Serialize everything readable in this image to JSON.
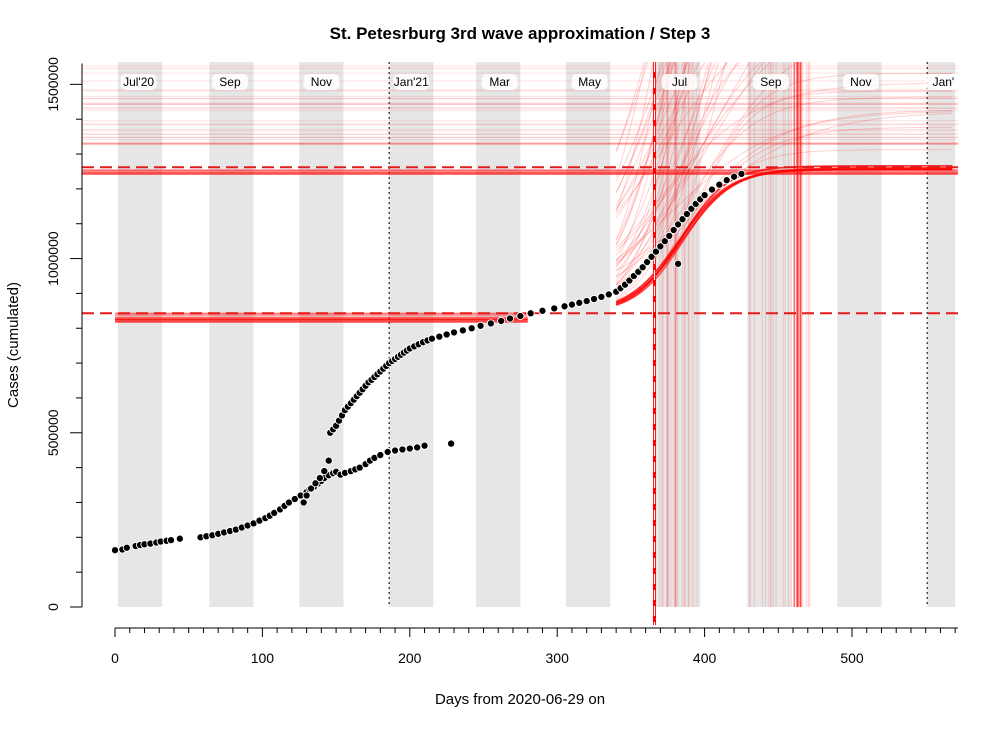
{
  "chart_data": {
    "type": "scatter",
    "title": "St. Petesrburg 3rd wave approximation / Step 3",
    "xlabel": "Days from 2020-06-29 on",
    "ylabel": "Cases (cumulated)",
    "xlim": [
      -5,
      570
    ],
    "ylim": [
      0,
      1560000
    ],
    "x_ticks": [
      0,
      100,
      200,
      300,
      400,
      500
    ],
    "y_ticks": [
      0,
      500000,
      1000000,
      1500000
    ],
    "x_tick_labels": [
      "0",
      "100",
      "200",
      "300",
      "400",
      "500"
    ],
    "y_tick_labels": [
      "0",
      "500000",
      "1000000",
      "1500000"
    ],
    "month_labels": [
      {
        "label": "Jul'20",
        "day": 16,
        "shade": [
          2,
          32
        ]
      },
      {
        "label": "Sep",
        "day": 78,
        "shade": [
          64,
          94
        ]
      },
      {
        "label": "Nov",
        "day": 140,
        "shade": [
          125,
          155
        ]
      },
      {
        "label": "Jan'21",
        "day": 201,
        "shade": [
          186,
          216
        ]
      },
      {
        "label": "Mar",
        "day": 261,
        "shade": [
          245,
          275
        ]
      },
      {
        "label": "May",
        "day": 322,
        "shade": [
          306,
          336
        ]
      },
      {
        "label": "Jul",
        "day": 383,
        "shade": [
          367,
          397
        ]
      },
      {
        "label": "Sep",
        "day": 445,
        "shade": [
          429,
          459
        ]
      },
      {
        "label": "Nov",
        "day": 506,
        "shade": [
          490,
          520
        ]
      },
      {
        "label": "Jan'",
        "day": 562,
        "shade": [
          551,
          570
        ]
      }
    ],
    "year_markers": [
      186,
      551
    ],
    "reference_lines": {
      "horizontal": [
        1262000,
        843000
      ],
      "vertical": [
        366
      ]
    },
    "colors": {
      "points": "#000000",
      "fit": "#ff0000",
      "shade": "#e6e6e6"
    },
    "series": [
      {
        "x": [
          0,
          5,
          8,
          14,
          17,
          20,
          24,
          28,
          31,
          35,
          38,
          44,
          58,
          62,
          66,
          70,
          74,
          78,
          82,
          86,
          90,
          94,
          98,
          102,
          105,
          108,
          112,
          115,
          118,
          122,
          126,
          130,
          132,
          135,
          138,
          140,
          142,
          145,
          148,
          150,
          153,
          156,
          160,
          163,
          166,
          170,
          173,
          176,
          180,
          185,
          190,
          195,
          200,
          205,
          210,
          228
        ],
        "y": [
          163000,
          165000,
          170000,
          175000,
          178000,
          180000,
          182000,
          185000,
          188000,
          190000,
          192000,
          196000,
          200000,
          203000,
          206000,
          210000,
          214000,
          218000,
          222000,
          228000,
          234000,
          240000,
          248000,
          255000,
          262000,
          270000,
          280000,
          290000,
          300000,
          310000,
          320000,
          330000,
          338000,
          345000,
          355000,
          362000,
          370000,
          378000,
          384000,
          388000,
          380000,
          385000,
          390000,
          395000,
          400000,
          410000,
          420000,
          428000,
          436000,
          445000,
          449000,
          452000,
          455000,
          458000,
          463000,
          469000
        ]
      },
      {
        "x": [
          128,
          130,
          133,
          136,
          139,
          142,
          145,
          146,
          148,
          150,
          152,
          154,
          156,
          158,
          160,
          162,
          164,
          166,
          168,
          170,
          172,
          174,
          176,
          178,
          180,
          182,
          184,
          186,
          188,
          190,
          192,
          194,
          196,
          198,
          200,
          203,
          206,
          209,
          212,
          215,
          220,
          225,
          230,
          236,
          242,
          248,
          255,
          262,
          268,
          275,
          282,
          290,
          298,
          305,
          310,
          315,
          320,
          325,
          330,
          335,
          340,
          343,
          346,
          349,
          352,
          355,
          358,
          361,
          364,
          367,
          370,
          373,
          376,
          379,
          382,
          385,
          388,
          391,
          394,
          397,
          400,
          405,
          410,
          415,
          420,
          425
        ],
        "y": [
          300000,
          320000,
          340000,
          355000,
          370000,
          390000,
          420000,
          500000,
          510000,
          520000,
          535000,
          550000,
          565000,
          575000,
          585000,
          595000,
          605000,
          615000,
          625000,
          635000,
          645000,
          652000,
          660000,
          668000,
          676000,
          684000,
          692000,
          700000,
          706000,
          712000,
          718000,
          724000,
          730000,
          736000,
          742000,
          748000,
          754000,
          760000,
          765000,
          770000,
          776000,
          782000,
          788000,
          794000,
          800000,
          807000,
          814000,
          821000,
          828000,
          835000,
          843000,
          850000,
          857000,
          863000,
          868000,
          873000,
          878000,
          884000,
          890000,
          897000,
          905000,
          915000,
          925000,
          937000,
          950000,
          962000,
          975000,
          990000,
          1005000,
          1020000,
          1035000,
          1050000,
          1065000,
          1082000,
          1098000,
          1113000,
          1128000,
          1143000,
          1157000,
          1170000,
          1182000,
          1198000,
          1212000,
          1225000,
          1235000,
          1243000
        ]
      },
      {
        "x": [
          382
        ],
        "y": [
          985000
        ]
      }
    ]
  }
}
